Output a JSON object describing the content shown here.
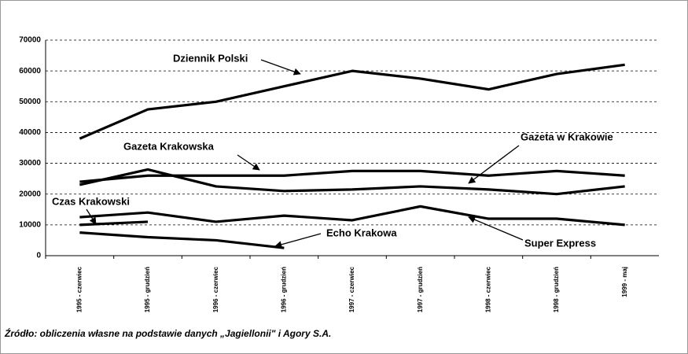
{
  "chart_data": {
    "type": "line",
    "categories": [
      "1995 - czerwiec",
      "1995 - grudzień",
      "1996 - czerwiec",
      "1996 - grudzień",
      "1997 - czerwiec",
      "1997 - grudzień",
      "1998 - czerwiec",
      "1998 - grudzień",
      "1999 - maj"
    ],
    "series": [
      {
        "name": "Dziennik Polski",
        "color": "#000000",
        "values": [
          38000,
          47500,
          50000,
          55000,
          60000,
          57500,
          54000,
          59000,
          62000
        ]
      },
      {
        "name": "Gazeta Krakowska",
        "color": "#000000",
        "values": [
          24000,
          26000,
          26000,
          26000,
          27500,
          27500,
          26000,
          27500,
          26000
        ]
      },
      {
        "name": "Gazeta w Krakowie",
        "color": "#000000",
        "values": [
          23000,
          28000,
          22500,
          21000,
          21500,
          22500,
          21500,
          20000,
          22500
        ]
      },
      {
        "name": "Czas Krakowski",
        "color": "#000000",
        "values": [
          10000,
          11000,
          null,
          null,
          null,
          null,
          null,
          null,
          null
        ]
      },
      {
        "name": "Echo Krakowa",
        "color": "#000000",
        "values": [
          7500,
          6000,
          5000,
          2500,
          null,
          null,
          null,
          null,
          null
        ]
      },
      {
        "name": "Super Express",
        "color": "#000000",
        "values": [
          12500,
          14000,
          11000,
          13000,
          11500,
          16000,
          12000,
          12000,
          10000
        ]
      }
    ],
    "ylim": [
      0,
      70000
    ],
    "yticks": [
      0,
      10000,
      20000,
      30000,
      40000,
      50000,
      60000,
      70000
    ],
    "grid": true,
    "source": "Źródło: obliczenia własne na podstawie danych „Jagiellonii\" i Agory S.A."
  }
}
